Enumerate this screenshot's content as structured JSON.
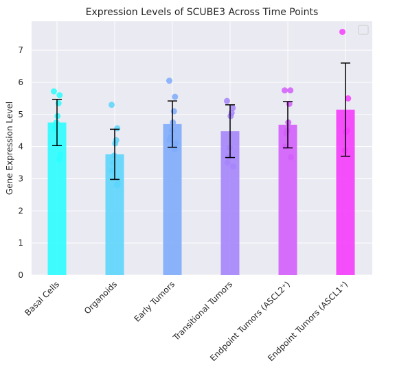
{
  "chart_data": {
    "type": "bar",
    "title": "Expression Levels of SCUBE3 Across Time Points",
    "xlabel": "",
    "ylabel": "Gene Expression Level",
    "ylim": [
      0,
      7.9
    ],
    "yticks": [
      0,
      1,
      2,
      3,
      4,
      5,
      6,
      7
    ],
    "grid": true,
    "legend": {
      "placement": "top-right",
      "entries": []
    },
    "categories": [
      "Basal Cells",
      "Organoids",
      "Early Tumors",
      "Transitional Tumors",
      "Endpoint Tumors (ASCL2⁺)",
      "Endpoint Tumors (ASCL1⁺)"
    ],
    "values": [
      4.75,
      3.76,
      4.7,
      4.48,
      4.68,
      5.15
    ],
    "errors": [
      0.72,
      0.78,
      0.72,
      0.82,
      0.72,
      1.45
    ],
    "colors": [
      "#2dfdff",
      "#5dd5fb",
      "#7eacfb",
      "#a685fb",
      "#d35efb",
      "#f53cfb"
    ],
    "points": [
      [
        5.72,
        5.6,
        5.35,
        4.95,
        4.75,
        4.65,
        4.55,
        3.75,
        3.6
      ],
      [
        5.3,
        4.57,
        4.2,
        4.1,
        3.72,
        3.5,
        3.25,
        2.85,
        2.8
      ],
      [
        6.05,
        5.55,
        5.1,
        4.75,
        4.5,
        4.3,
        4.2,
        4.1,
        3.92
      ],
      [
        5.42,
        5.2,
        5.05,
        4.95,
        3.97,
        3.68,
        3.5,
        3.38
      ],
      [
        5.75,
        5.75,
        5.33,
        4.75,
        4.5,
        4.42,
        4.0,
        3.67
      ],
      [
        7.57,
        5.5,
        4.5,
        4.45,
        3.88
      ]
    ]
  }
}
